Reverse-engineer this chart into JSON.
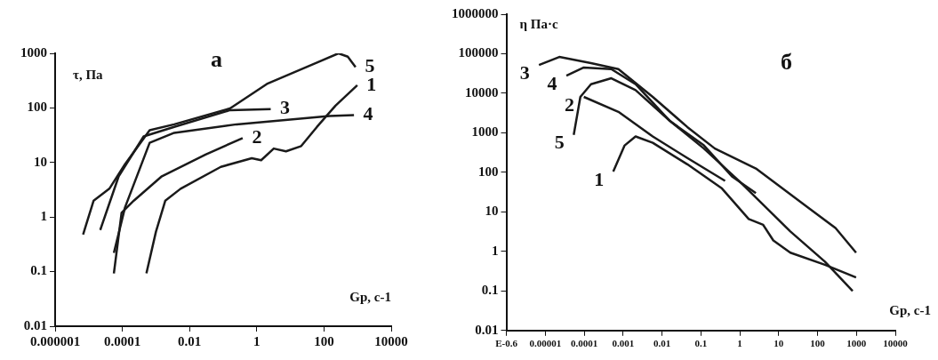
{
  "chart_data": [
    {
      "type": "line",
      "title": "а",
      "xlabel": "Gp, с-1",
      "ylabel": "τ, Па",
      "log": "xy",
      "grid": false,
      "legend": false,
      "marker": "none",
      "line_style": "solid",
      "xlim": [
        1e-06,
        10000
      ],
      "xticks": [
        {
          "value": 1e-06,
          "label": "0.000001"
        },
        {
          "value": 0.0001,
          "label": "0.0001"
        },
        0.01,
        1,
        100,
        10000
      ],
      "ylim": [
        0.01,
        1000
      ],
      "yticks": [
        0.01,
        0.1,
        1,
        10,
        100,
        1000
      ],
      "series": [
        {
          "name": "1",
          "color": "#1a1a1a",
          "x": [
            0.00052,
            0.001,
            0.0019,
            0.0054,
            0.085,
            0.71,
            1.35,
            3.2,
            7.4,
            21,
            62,
            220,
            980
          ],
          "values": [
            0.093,
            0.54,
            2,
            3.3,
            8.3,
            12,
            11,
            18,
            16,
            20,
            45,
            110,
            260
          ]
        },
        {
          "name": "2",
          "color": "#1a1a1a",
          "x": [
            5.6e-05,
            9.5e-05,
            0.00022,
            0.0015,
            0.03,
            0.38
          ],
          "values": [
            0.093,
            1.2,
            2,
            5.6,
            14,
            28
          ]
        },
        {
          "name": "3",
          "color": "#1a1a1a",
          "x": [
            2.2e-05,
            7.8e-05,
            0.00043,
            0.0035,
            0.16,
            2.6
          ],
          "values": [
            0.58,
            5.6,
            30,
            45,
            91,
            95
          ]
        },
        {
          "name": "4",
          "color": "#1a1a1a",
          "x": [
            5.6e-05,
            0.00012,
            0.00065,
            0.0035,
            0.25,
            145,
            780
          ],
          "values": [
            0.22,
            1.5,
            23,
            35,
            50,
            71,
            74
          ]
        },
        {
          "name": "5",
          "color": "#1a1a1a",
          "x": [
            6.8e-06,
            1.4e-05,
            4.1e-05,
            0.00012,
            0.00065,
            0.0035,
            0.16,
            2,
            62,
            270,
            510,
            870
          ],
          "values": [
            0.48,
            2,
            3.3,
            9.3,
            39,
            50,
            98,
            275,
            680,
            1000,
            870,
            560
          ]
        }
      ]
    },
    {
      "type": "line",
      "title": "б",
      "xlabel": "Gp, с-1",
      "ylabel": "η Па·с",
      "log": "xy",
      "grid": false,
      "legend": false,
      "marker": "none",
      "line_style": "solid",
      "xlim": [
        1e-06,
        10000
      ],
      "xticks": [
        {
          "value": 1e-06,
          "label": "E-0.6"
        },
        {
          "value": 1e-05,
          "label": "0.00001"
        },
        {
          "value": 0.0001,
          "label": "0.0001"
        },
        {
          "value": 0.001,
          "label": "0.001"
        },
        0.01,
        0.1,
        1,
        10,
        100,
        1000,
        10000
      ],
      "ylim": [
        0.01,
        1000000
      ],
      "yticks": [
        0.01,
        0.1,
        1,
        10,
        100,
        1000,
        10000,
        100000,
        1000000
      ],
      "series": [
        {
          "name": "1",
          "color": "#1a1a1a",
          "x": [
            0.00056,
            0.0011,
            0.0021,
            0.0058,
            0.045,
            0.35,
            1.7,
            4,
            7.3,
            20,
            155,
            980
          ],
          "values": [
            105,
            480,
            810,
            560,
            160,
            39,
            6.6,
            4.7,
            1.9,
            0.93,
            0.46,
            0.22
          ]
        },
        {
          "name": "2",
          "color": "#1a1a1a",
          "x": [
            9.8e-05,
            0.00076,
            0.0058,
            0.045,
            0.42
          ],
          "values": [
            8100,
            3400,
            810,
            230,
            61
          ]
        },
        {
          "name": "3",
          "color": "#1a1a1a",
          "x": [
            6.9e-06,
            2.3e-05,
            0.00015,
            0.00076,
            0.0058,
            0.045,
            0.23,
            2.6,
            56,
            290,
            980
          ],
          "values": [
            52000,
            83000,
            58000,
            41000,
            8100,
            1400,
            400,
            125,
            13,
            3.9,
            0.93
          ]
        },
        {
          "name": "4",
          "color": "#1a1a1a",
          "x": [
            3.5e-05,
            9.8e-05,
            0.0005,
            0.0021,
            0.016,
            0.12,
            0.63,
            2.6
          ],
          "values": [
            28000,
            45000,
            41000,
            17000,
            2000,
            480,
            79,
            30
          ]
        },
        {
          "name": "5",
          "color": "#1a1a1a",
          "x": [
            5.4e-05,
            8e-05,
            0.00015,
            0.0005,
            0.0021,
            0.016,
            0.12,
            0.95,
            20,
            155,
            800
          ],
          "values": [
            890,
            8100,
            17000,
            24000,
            12000,
            2000,
            400,
            61,
            3.2,
            0.55,
            0.1
          ]
        }
      ]
    }
  ]
}
